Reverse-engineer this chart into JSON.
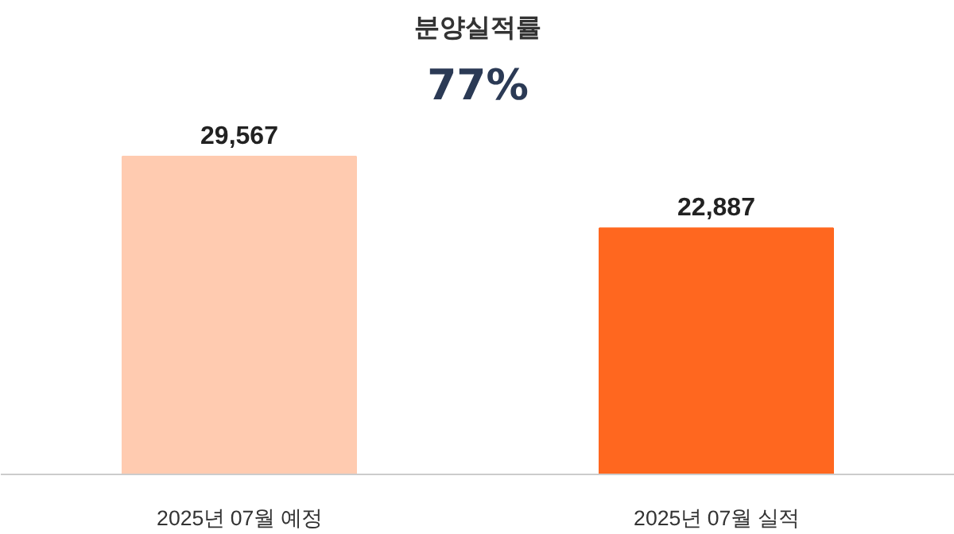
{
  "chart_data": {
    "type": "bar",
    "title": "분양실적률",
    "subtitle": "77%",
    "categories": [
      "2025년 07월 예정",
      "2025년 07월 실적"
    ],
    "values": [
      29567,
      22887
    ],
    "colors": [
      "#ffcbb0",
      "#ff671f"
    ],
    "value_labels": [
      "29,567",
      "22,887"
    ],
    "grid": false
  }
}
